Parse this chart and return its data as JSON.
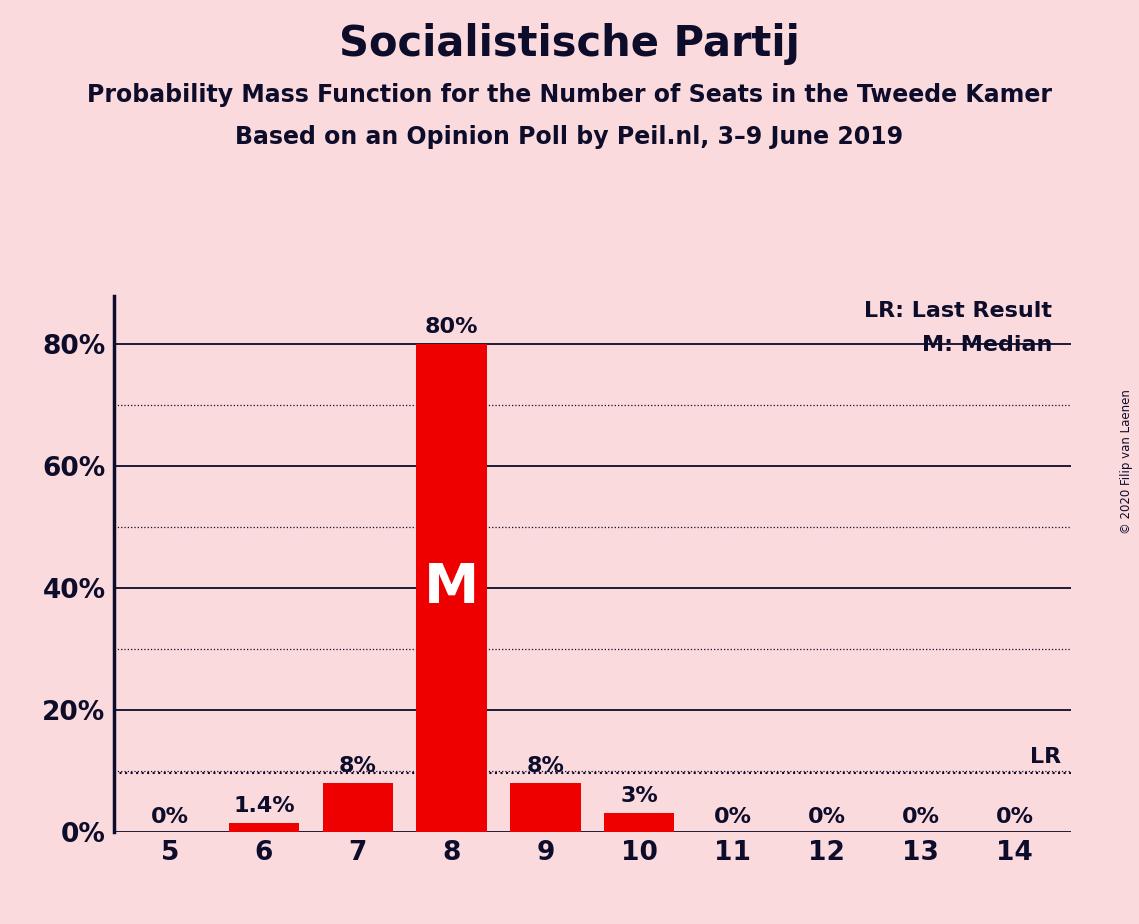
{
  "title": "Socialistische Partij",
  "subtitle1": "Probability Mass Function for the Number of Seats in the Tweede Kamer",
  "subtitle2": "Based on an Opinion Poll by Peil.nl, 3–9 June 2019",
  "copyright": "© 2020 Filip van Laenen",
  "categories": [
    5,
    6,
    7,
    8,
    9,
    10,
    11,
    12,
    13,
    14
  ],
  "values": [
    0.0,
    1.4,
    8.0,
    80.0,
    8.0,
    3.0,
    0.0,
    0.0,
    0.0,
    0.0
  ],
  "bar_color": "#EE0000",
  "median_seat": 8,
  "last_result_value": 9.6,
  "background_color": "#FADADD",
  "bar_labels": [
    "0%",
    "1.4%",
    "8%",
    "80%",
    "8%",
    "3%",
    "0%",
    "0%",
    "0%",
    "0%"
  ],
  "median_label": "M",
  "legend_lr": "LR: Last Result",
  "legend_m": "M: Median",
  "ylabel_ticks": [
    0,
    20,
    40,
    60,
    80
  ],
  "ylim": [
    0,
    88
  ],
  "title_fontsize": 30,
  "subtitle_fontsize": 17,
  "tick_fontsize": 19,
  "label_fontsize": 16,
  "legend_fontsize": 16
}
